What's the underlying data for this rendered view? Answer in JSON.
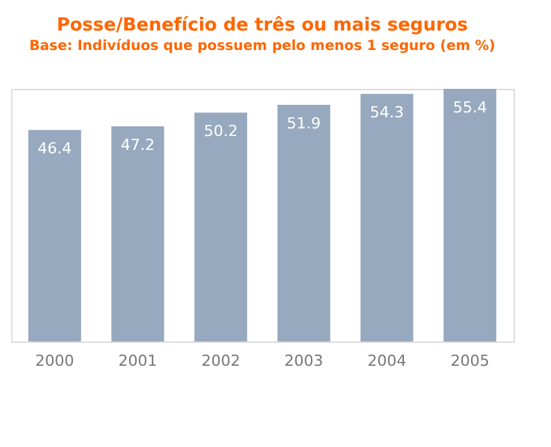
{
  "chart_data": {
    "type": "bar",
    "title": "Posse/Benefício de três ou mais seguros",
    "subtitle": "Base: Indivíduos que possuem pelo menos 1 seguro (em %)",
    "categories": [
      "2000",
      "2001",
      "2002",
      "2003",
      "2004",
      "2005"
    ],
    "values": [
      46.4,
      47.2,
      50.2,
      51.9,
      54.3,
      55.4
    ],
    "color": "#97a9bf",
    "data_labels": true,
    "grid": false,
    "tick_labels": "x"
  }
}
